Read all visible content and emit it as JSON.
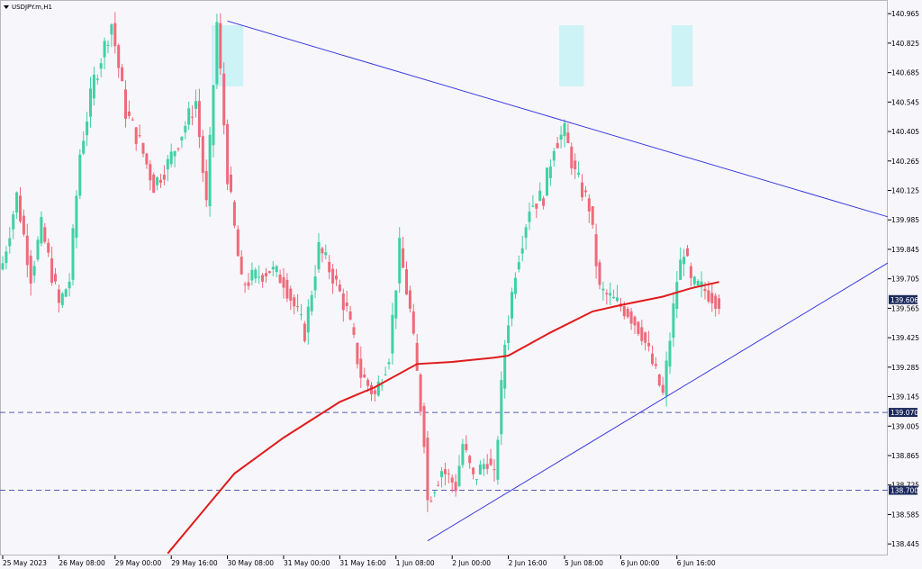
{
  "window": {
    "title": "USDJPY.m,H1",
    "menu_icon": "triangle-down-icon"
  },
  "colors": {
    "background": "#f7f6fb",
    "bull": "#3fd1a3",
    "bear": "#ef6a79",
    "moving_average": "#e11b1b",
    "trendline": "#3a3ae0",
    "level_line": "#5a5ab0",
    "highlight": "#c8f3f5",
    "price_tag": "#1d2a5c",
    "text": "#000000"
  },
  "chart_data": {
    "type": "candlestick",
    "symbol": "USDJPY.m",
    "timeframe": "H1",
    "ylim": [
      138.39,
      141.03
    ],
    "y_ticks": [
      "140.965",
      "140.825",
      "140.685",
      "140.545",
      "140.405",
      "140.265",
      "140.125",
      "139.985",
      "139.845",
      "139.705",
      "139.565",
      "139.425",
      "139.285",
      "139.145",
      "139.005",
      "138.865",
      "138.725",
      "138.585",
      "138.445"
    ],
    "x_ticks": [
      "25 May 2023",
      "26 May 08:00",
      "29 May 00:00",
      "29 May 16:00",
      "30 May 08:00",
      "31 May 00:00",
      "31 May 16:00",
      "1 Jun 08:00",
      "2 Jun 00:00",
      "2 Jun 16:00",
      "5 Jun 08:00",
      "6 Jun 00:00",
      "6 Jun 16:00"
    ],
    "x_tick_index": [
      0,
      16,
      32,
      48,
      64,
      80,
      96,
      112,
      128,
      144,
      160,
      176,
      192
    ],
    "current_price": "139.606",
    "horizontal_levels": [
      {
        "label": "139.070",
        "price": 139.07
      },
      {
        "label": "138.700",
        "price": 138.7
      }
    ],
    "waypoints": [
      [
        0,
        139.78
      ],
      [
        4,
        140.1
      ],
      [
        8,
        139.72
      ],
      [
        11,
        139.95
      ],
      [
        16,
        139.58
      ],
      [
        19,
        139.7
      ],
      [
        22,
        140.3
      ],
      [
        26,
        140.65
      ],
      [
        31,
        140.92
      ],
      [
        35,
        140.5
      ],
      [
        39,
        140.35
      ],
      [
        43,
        140.15
      ],
      [
        47,
        140.25
      ],
      [
        55,
        140.55
      ],
      [
        58,
        140.05
      ],
      [
        61,
        140.92
      ],
      [
        64,
        140.2
      ],
      [
        68,
        139.68
      ],
      [
        76,
        139.75
      ],
      [
        80,
        139.7
      ],
      [
        86,
        139.45
      ],
      [
        90,
        139.85
      ],
      [
        94,
        139.72
      ],
      [
        98,
        139.55
      ],
      [
        102,
        139.25
      ],
      [
        106,
        139.15
      ],
      [
        110,
        139.35
      ],
      [
        113,
        139.85
      ],
      [
        116,
        139.55
      ],
      [
        120,
        138.95
      ],
      [
        121,
        138.65
      ],
      [
        125,
        138.8
      ],
      [
        129,
        138.72
      ],
      [
        131,
        138.92
      ],
      [
        134,
        138.75
      ],
      [
        138,
        138.85
      ],
      [
        140,
        138.75
      ],
      [
        143,
        139.4
      ],
      [
        146,
        139.75
      ],
      [
        150,
        140.05
      ],
      [
        154,
        140.1
      ],
      [
        157,
        140.35
      ],
      [
        160,
        140.4
      ],
      [
        163,
        140.2
      ],
      [
        167,
        140.05
      ],
      [
        170,
        139.65
      ],
      [
        174,
        139.6
      ],
      [
        178,
        139.55
      ],
      [
        182,
        139.45
      ],
      [
        186,
        139.25
      ],
      [
        188,
        139.15
      ],
      [
        192,
        139.7
      ],
      [
        194,
        139.85
      ],
      [
        196,
        139.68
      ],
      [
        200,
        139.65
      ],
      [
        204,
        139.6
      ]
    ],
    "moving_average": [
      [
        47,
        138.4
      ],
      [
        56,
        138.58
      ],
      [
        66,
        138.78
      ],
      [
        80,
        138.95
      ],
      [
        96,
        139.12
      ],
      [
        106,
        139.19
      ],
      [
        118,
        139.3
      ],
      [
        128,
        139.31
      ],
      [
        140,
        139.33
      ],
      [
        144,
        139.34
      ],
      [
        156,
        139.45
      ],
      [
        168,
        139.55
      ],
      [
        176,
        139.58
      ],
      [
        188,
        139.62
      ],
      [
        196,
        139.66
      ],
      [
        204,
        139.69
      ]
    ],
    "trendlines": [
      {
        "from": [
          64,
          140.93
        ],
        "to": [
          256,
          139.98
        ]
      },
      {
        "from": [
          121,
          138.46
        ],
        "to": [
          256,
          139.82
        ]
      }
    ],
    "highlights": [
      {
        "from": 60,
        "to": 68
      },
      {
        "from": 159,
        "to": 165
      },
      {
        "from": 191,
        "to": 196
      }
    ]
  }
}
